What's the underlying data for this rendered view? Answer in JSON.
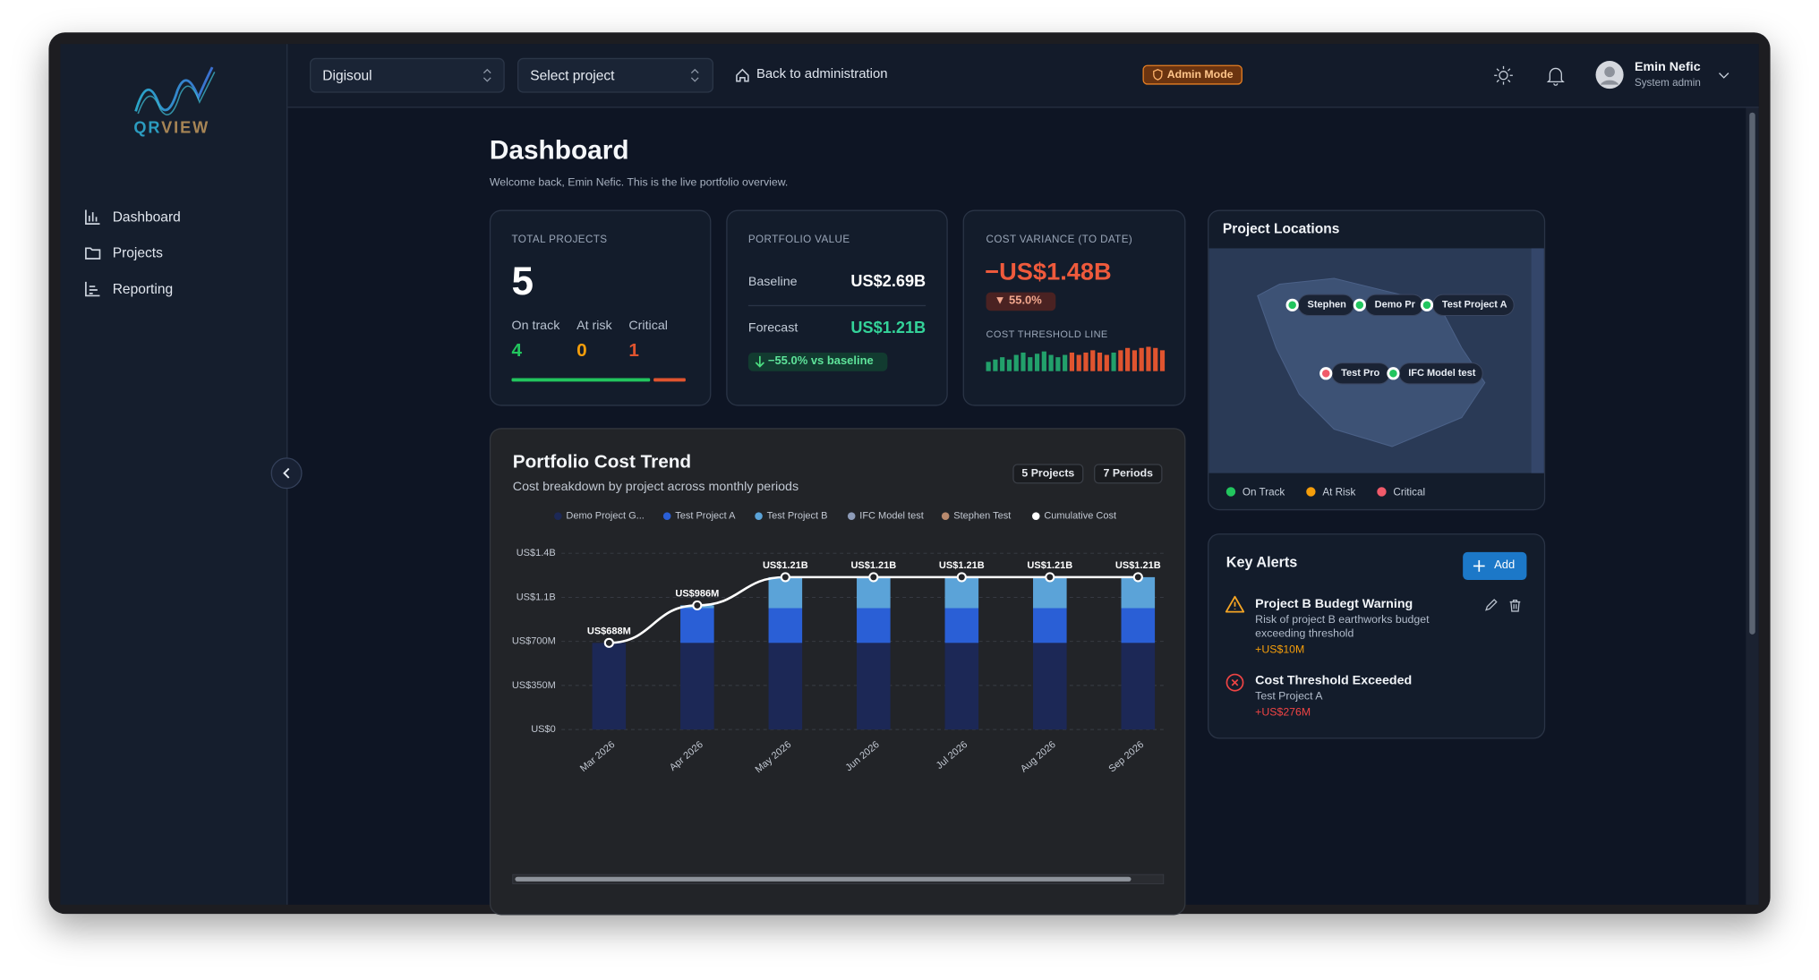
{
  "sidebar": {
    "logo": "QRVIEW",
    "nav": [
      "Dashboard",
      "Projects",
      "Reporting"
    ]
  },
  "header": {
    "org": "Digisoul",
    "project": "Select project",
    "back": "Back to administration",
    "badge": "Admin Mode",
    "user": {
      "name": "Emin Nefic",
      "role": "System admin"
    }
  },
  "page": {
    "title": "Dashboard",
    "subtitle": "Welcome back, Emin Nefic. This is the live portfolio overview."
  },
  "cards": {
    "total": {
      "label": "TOTAL PROJECTS",
      "value": 5,
      "stats": [
        {
          "label": "On track",
          "value": 4,
          "color": "#22c55e"
        },
        {
          "label": "At risk",
          "value": 0,
          "color": "#f59e0b"
        },
        {
          "label": "Critical",
          "value": 1,
          "color": "#e0542f"
        }
      ]
    },
    "portfolio": {
      "label": "PORTFOLIO VALUE",
      "rows": [
        {
          "label": "Baseline",
          "value": "US$2.69B",
          "color": "#ffffff"
        },
        {
          "label": "Forecast",
          "value": "US$1.21B",
          "color": "#34d399"
        }
      ],
      "delta": "−55.0% vs baseline"
    },
    "variance": {
      "label": "COST VARIANCE (TO DATE)",
      "value": "−US$1.48B",
      "delta": "▼ 55.0%",
      "sub": "COST THRESHOLD LINE",
      "bars": [
        {
          "value": 8,
          "color": "#22a06b"
        },
        {
          "value": 10,
          "color": "#22a06b"
        },
        {
          "value": 12,
          "color": "#22a06b"
        },
        {
          "value": 10,
          "color": "#22a06b"
        },
        {
          "value": 14,
          "color": "#22a06b"
        },
        {
          "value": 16,
          "color": "#22a06b"
        },
        {
          "value": 12,
          "color": "#22a06b"
        },
        {
          "value": 15,
          "color": "#22a06b"
        },
        {
          "value": 17,
          "color": "#22a06b"
        },
        {
          "value": 14,
          "color": "#22a06b"
        },
        {
          "value": 12,
          "color": "#22a06b"
        },
        {
          "value": 14,
          "color": "#22a06b"
        },
        {
          "value": 16,
          "color": "#e0542f"
        },
        {
          "value": 14,
          "color": "#e0542f"
        },
        {
          "value": 16,
          "color": "#e0542f"
        },
        {
          "value": 18,
          "color": "#e0542f"
        },
        {
          "value": 16,
          "color": "#e0542f"
        },
        {
          "value": 14,
          "color": "#e0542f"
        },
        {
          "value": 16,
          "color": "#22a06b"
        },
        {
          "value": 18,
          "color": "#e0542f"
        },
        {
          "value": 20,
          "color": "#e0542f"
        },
        {
          "value": 18,
          "color": "#e0542f"
        },
        {
          "value": 20,
          "color": "#e0542f"
        },
        {
          "value": 21,
          "color": "#e0542f"
        },
        {
          "value": 20,
          "color": "#e0542f"
        },
        {
          "value": 18,
          "color": "#e0542f"
        }
      ]
    }
  },
  "trend": {
    "chips": [
      "5 Projects",
      "7 Periods"
    ]
  },
  "chart_data": {
    "type": "bar",
    "stacked": true,
    "title": "Portfolio Cost Trend",
    "subtitle": "Cost breakdown by project across monthly periods",
    "categories": [
      "Mar 2026",
      "Apr 2026",
      "May 2026",
      "Jun 2026",
      "Jul 2026",
      "Aug 2026",
      "Sep 2026"
    ],
    "series": [
      {
        "name": "Demo Project G...",
        "color": "#1c2856",
        "values": [
          688000000,
          688000000,
          688000000,
          688000000,
          688000000,
          688000000,
          688000000
        ]
      },
      {
        "name": "Test Project A",
        "color": "#2a5fd6",
        "values": [
          0,
          276000000,
          276000000,
          276000000,
          276000000,
          276000000,
          276000000
        ]
      },
      {
        "name": "Test Project B",
        "color": "#5ba3d8",
        "values": [
          0,
          22000000,
          246000000,
          246000000,
          246000000,
          246000000,
          246000000
        ]
      },
      {
        "name": "IFC Model test",
        "color": "#8d9bb8",
        "values": [
          0,
          0,
          0,
          0,
          0,
          0,
          0
        ]
      },
      {
        "name": "Stephen Test",
        "color": "#b98a6e",
        "values": [
          0,
          0,
          0,
          0,
          0,
          0,
          0
        ]
      },
      {
        "name": "Cumulative Cost",
        "color": "#ffffff",
        "type": "line",
        "values": [
          688000000,
          986000000,
          1210000000,
          1210000000,
          1210000000,
          1210000000,
          1210000000
        ],
        "value_labels": [
          "US$688M",
          "US$986M",
          "US$1.21B",
          "US$1.21B",
          "US$1.21B",
          "US$1.21B",
          "US$1.21B"
        ]
      }
    ],
    "ylim": [
      0,
      1400000000
    ],
    "yticks": [
      {
        "value": 0,
        "label": "US$0"
      },
      {
        "value": 350000000,
        "label": "US$350M"
      },
      {
        "value": 700000000,
        "label": "US$700M"
      },
      {
        "value": 1050000000,
        "label": "US$1.1B"
      },
      {
        "value": 1400000000,
        "label": "US$1.4B"
      }
    ],
    "grid": true,
    "legend": "top"
  },
  "map": {
    "title": "Project Locations",
    "markers": [
      {
        "label": "Stephen",
        "status": "On Track"
      },
      {
        "label": "Demo Pr",
        "status": "On Track"
      },
      {
        "label": "Test Project A",
        "status": "On Track"
      },
      {
        "label": "Test Pro",
        "status": "Critical"
      },
      {
        "label": "IFC Model test",
        "status": "On Track"
      }
    ],
    "legend": [
      {
        "label": "On Track",
        "color": "#22c55e"
      },
      {
        "label": "At Risk",
        "color": "#f59e0b"
      },
      {
        "label": "Critical",
        "color": "#f05a6a"
      }
    ]
  },
  "alerts": {
    "title": "Key Alerts",
    "add": "Add",
    "items": [
      {
        "title": "Project B Budegt Warning",
        "desc": "Risk of project B earthworks budget exceeding threshold",
        "amount": "+US$10M",
        "color": "#f59e0b"
      },
      {
        "title": "Cost Threshold Exceeded",
        "desc": "Test Project A",
        "amount": "+US$276M",
        "color": "#ef4444"
      }
    ]
  }
}
